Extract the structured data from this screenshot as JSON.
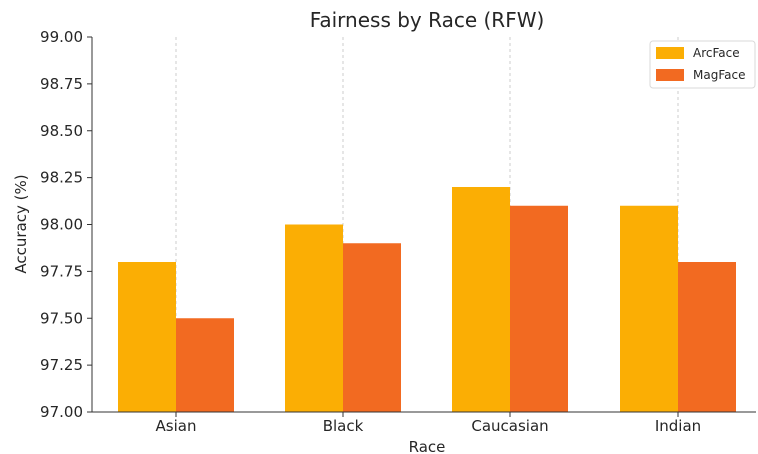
{
  "chart_data": {
    "type": "bar",
    "title": "Fairness by Race (RFW)",
    "xlabel": "Race",
    "ylabel": "Accuracy (%)",
    "categories": [
      "Asian",
      "Black",
      "Caucasian",
      "Indian"
    ],
    "series": [
      {
        "name": "ArcFace",
        "values": [
          97.8,
          98.0,
          98.2,
          98.1
        ],
        "color": "#FBAE04"
      },
      {
        "name": "MagFace",
        "values": [
          97.5,
          97.9,
          98.1,
          97.8
        ],
        "color": "#F26A21"
      }
    ],
    "ylim": [
      97.0,
      99.0
    ],
    "yticks": [
      "97.00",
      "97.25",
      "97.50",
      "97.75",
      "98.00",
      "98.25",
      "98.50",
      "98.75",
      "99.00"
    ],
    "grid": "x",
    "legend": "top-right"
  }
}
